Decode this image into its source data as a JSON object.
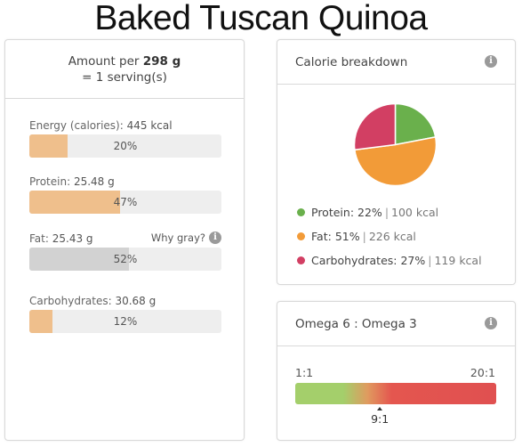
{
  "page": {
    "title": "Baked Tuscan Quinoa"
  },
  "amount_panel": {
    "prefix": "Amount per",
    "amount": "298 g",
    "serving": "= 1 serving(s)"
  },
  "nutrients": [
    {
      "label": "Energy (calories):",
      "value": "445 kcal",
      "percent_text": "20%",
      "fill_percent": 20,
      "color": "#efbf8c"
    },
    {
      "label": "Protein:",
      "value": "25.48 g",
      "percent_text": "47%",
      "fill_percent": 47,
      "color": "#efbf8c"
    },
    {
      "label": "Fat:",
      "value": "25.43 g",
      "percent_text": "52%",
      "fill_percent": 52,
      "color": "#d2d2d2",
      "note": "Why gray?",
      "note_icon": "info-icon"
    },
    {
      "label": "Carbohydrates:",
      "value": "30.68 g",
      "percent_text": "12%",
      "fill_percent": 12,
      "color": "#efbf8c"
    }
  ],
  "calorie_breakdown": {
    "title": "Calorie breakdown",
    "icon": "info-icon",
    "slices": [
      {
        "name": "Protein:",
        "percent": 22,
        "percent_text": "22%",
        "kcal": "100 kcal",
        "color": "#6ab04c"
      },
      {
        "name": "Fat:",
        "percent": 51,
        "percent_text": "51%",
        "kcal": "226 kcal",
        "color": "#f29b38"
      },
      {
        "name": "Carbohydrates:",
        "percent": 27,
        "percent_text": "27%",
        "kcal": "119 kcal",
        "color": "#d23f63"
      }
    ],
    "separator": "|"
  },
  "omega": {
    "title": "Omega 6 : Omega 3",
    "icon": "info-icon",
    "scale_min": "1:1",
    "scale_max": "20:1",
    "marker_value": "9:1",
    "marker_ratio": 9,
    "scale_range": [
      1,
      20
    ],
    "colors": {
      "low": "#a4cf6b",
      "high": "#e05050"
    }
  }
}
